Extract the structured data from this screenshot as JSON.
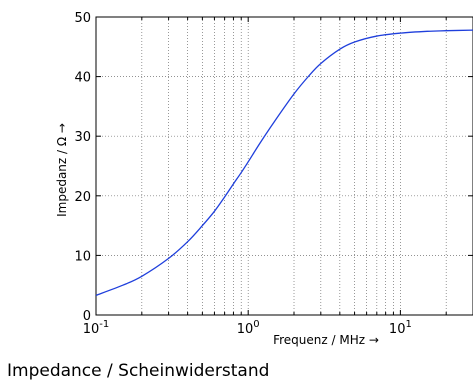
{
  "caption": "Impedance / Scheinwiderstand",
  "colors": {
    "series": "#1f3fdc",
    "grid": "#6e6e6e",
    "axis": "#000000"
  },
  "chart_data": {
    "type": "line",
    "title": "",
    "xlabel": "Frequenz / MHz →",
    "ylabel": "Impedanz / Ω →",
    "xscale": "log",
    "xlim": [
      0.1,
      30
    ],
    "ylim": [
      0,
      50
    ],
    "yticks": [
      0,
      10,
      20,
      30,
      40,
      50
    ],
    "xticks": [
      0.1,
      1,
      10
    ],
    "xtick_labels": [
      {
        "base": "10",
        "exp": "-1"
      },
      {
        "base": "10",
        "exp": "0"
      },
      {
        "base": "10",
        "exp": "1"
      }
    ],
    "grid": true,
    "legend": "none",
    "series": [
      {
        "x": [
          0.1,
          0.15,
          0.2,
          0.3,
          0.4,
          0.5,
          0.6,
          0.7,
          0.8,
          0.9,
          1.0,
          1.2,
          1.5,
          2.0,
          2.5,
          3.0,
          4.0,
          5.0,
          7.0,
          10.0,
          15.0,
          20.0,
          30.0
        ],
        "values": [
          3.3,
          5.0,
          6.5,
          9.5,
          12.3,
          15.0,
          17.4,
          19.8,
          22.0,
          23.9,
          25.7,
          28.9,
          32.6,
          37.1,
          40.1,
          42.2,
          44.6,
          45.8,
          46.8,
          47.3,
          47.6,
          47.7,
          47.8
        ]
      }
    ]
  }
}
